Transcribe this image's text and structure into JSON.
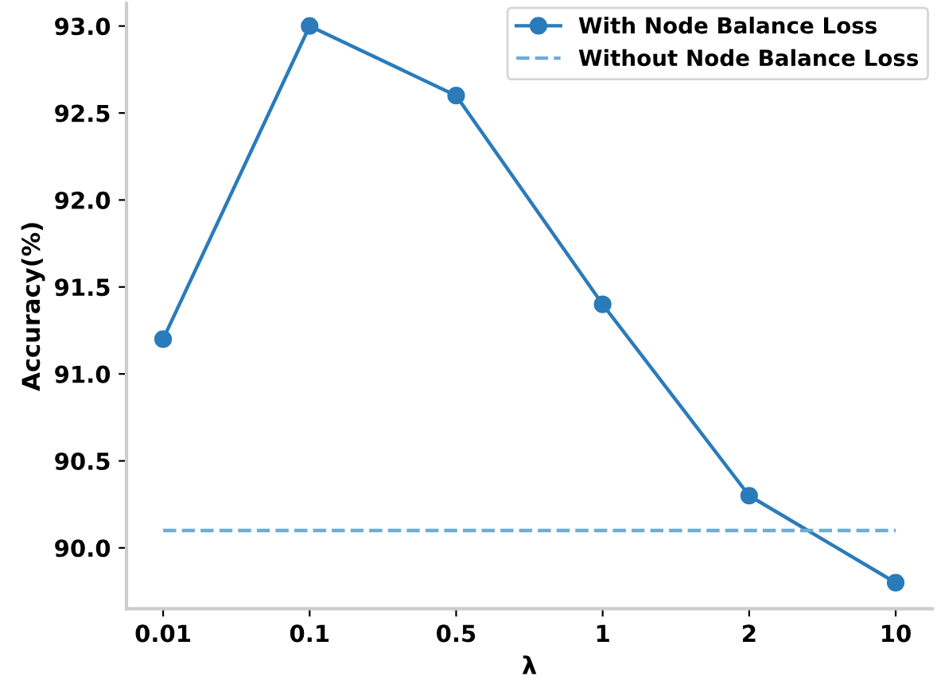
{
  "chart_data": {
    "type": "line",
    "xlabel": "λ",
    "ylabel": "Accuracy(%)",
    "categories": [
      "0.01",
      "0.1",
      "0.5",
      "1",
      "2",
      "10"
    ],
    "series": [
      {
        "name": "With Node Balance Loss",
        "color": "#2b7bba",
        "values": [
          91.2,
          93.0,
          92.6,
          91.4,
          90.3,
          89.8
        ],
        "marker": "circle",
        "line_style": "solid"
      },
      {
        "name": "Without Node Balance Loss",
        "color": "#6baed6",
        "values": [
          90.1,
          90.1,
          90.1,
          90.1,
          90.1,
          90.1
        ],
        "marker": "none",
        "line_style": "dashed"
      }
    ],
    "ylim": [
      89.65,
      93.13
    ],
    "yticks": [
      {
        "value": 90.0,
        "label": "90.0"
      },
      {
        "value": 90.5,
        "label": "90.5"
      },
      {
        "value": 91.0,
        "label": "91.0"
      },
      {
        "value": 91.5,
        "label": "91.5"
      },
      {
        "value": 92.0,
        "label": "92.0"
      },
      {
        "value": 92.5,
        "label": "92.5"
      },
      {
        "value": 93.0,
        "label": "93.0"
      }
    ],
    "grid": false,
    "legend": "top right"
  }
}
